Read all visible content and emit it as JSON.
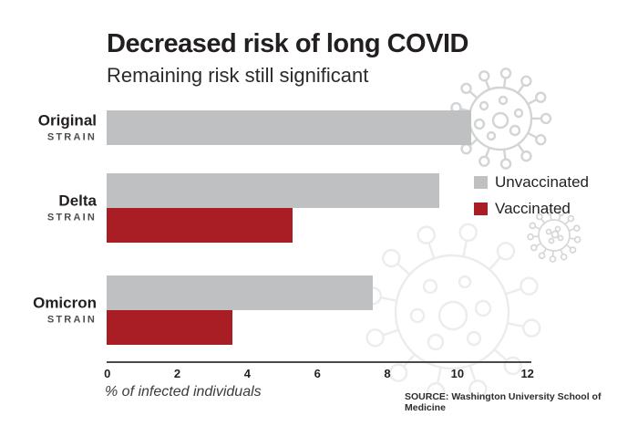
{
  "header": {
    "title": "Decreased risk of long COVID",
    "subtitle": "Remaining risk still significant"
  },
  "chart_data": {
    "type": "bar",
    "orientation": "horizontal",
    "title": "Decreased risk of long COVID",
    "subtitle": "Remaining risk still significant",
    "categories": [
      "Original",
      "Delta",
      "Omicron"
    ],
    "category_subtitle": "STRAIN",
    "series": [
      {
        "name": "Unvaccinated",
        "color": "#bec0c2",
        "values": [
          10.4,
          9.5,
          7.6
        ]
      },
      {
        "name": "Vaccinated",
        "color": "#a81e24",
        "values": [
          null,
          5.3,
          3.6
        ]
      }
    ],
    "xlabel": "% of infected individuals",
    "xlim": [
      0,
      12
    ],
    "xticks": [
      0,
      2,
      4,
      6,
      8,
      10,
      12
    ],
    "grid": false,
    "legend_position": "right-center"
  },
  "footer": {
    "source": "SOURCE: Washington University School of Medicine"
  },
  "colors": {
    "unvaccinated": "#bec0c2",
    "vaccinated": "#a81e24",
    "axis": "#4a4a4b",
    "text": "#231f20",
    "strain_label": "#4c4d4f",
    "watermark_medium": "#d3d4d6",
    "watermark_small": "#d6d7d9",
    "watermark_large": "#ebecee"
  },
  "decorations": {
    "virus_icons": [
      "virus-icon-medium",
      "virus-icon-small",
      "virus-icon-large"
    ]
  }
}
